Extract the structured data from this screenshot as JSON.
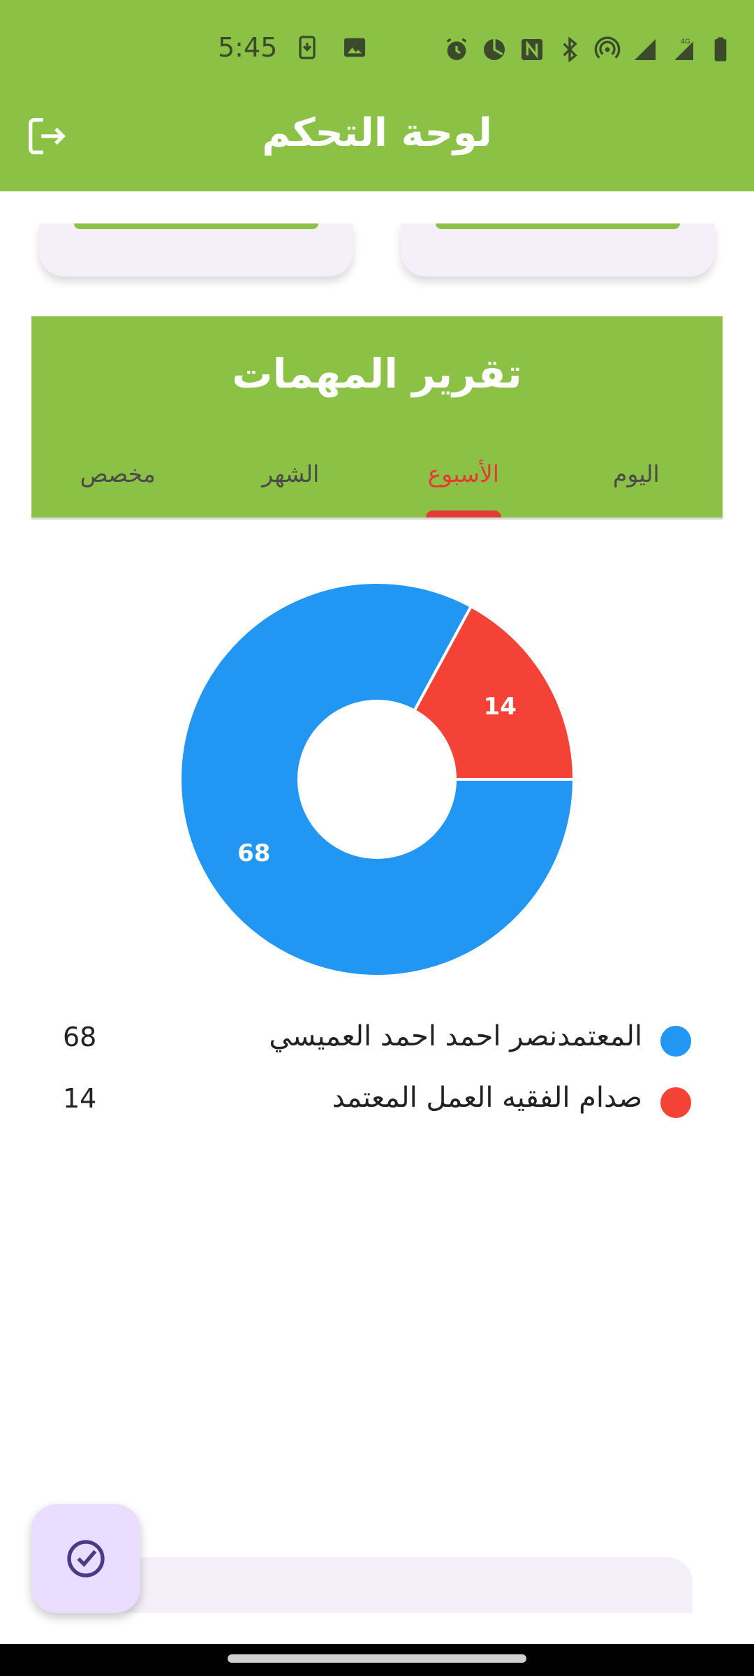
{
  "status_bar": {
    "time": "5:45",
    "icons": [
      "download-notification-icon",
      "image-notification-icon",
      "alarm-icon",
      "data-saver-icon",
      "nfc-icon",
      "bluetooth-icon",
      "hotspot-icon",
      "signal-icon",
      "4g-signal-icon",
      "battery-icon"
    ],
    "network_label": "4G"
  },
  "app_bar": {
    "title": "لوحة التحكم",
    "logout_icon": "logout-icon"
  },
  "report": {
    "title": "تقرير المهمات",
    "tabs": [
      {
        "label": "اليوم",
        "active": false
      },
      {
        "label": "الأسبوع",
        "active": true
      },
      {
        "label": "الشهر",
        "active": false
      },
      {
        "label": "مخصص",
        "active": false
      }
    ]
  },
  "chart_data": {
    "type": "pie",
    "donut": true,
    "categories": [
      "المعتمدنصر احمد احمد العميسي",
      "صدام الفقيه العمل  المعتمد"
    ],
    "values": [
      68,
      14
    ],
    "colors": [
      "#2196f3",
      "#f44336"
    ],
    "data_labels": [
      "68",
      "14"
    ],
    "legend": "below"
  },
  "legend": [
    {
      "name": "المعتمدنصر احمد احمد العميسي",
      "value": "68",
      "color": "#2196f3"
    },
    {
      "name": "صدام الفقيه العمل  المعتمد",
      "value": "14",
      "color": "#f44336"
    }
  ],
  "fab": {
    "icon": "check-circle-icon"
  },
  "colors": {
    "primary": "#8bc145",
    "active_tab": "#e53935",
    "fab_bg": "#eaddff",
    "card_bg": "#f4eff8"
  }
}
